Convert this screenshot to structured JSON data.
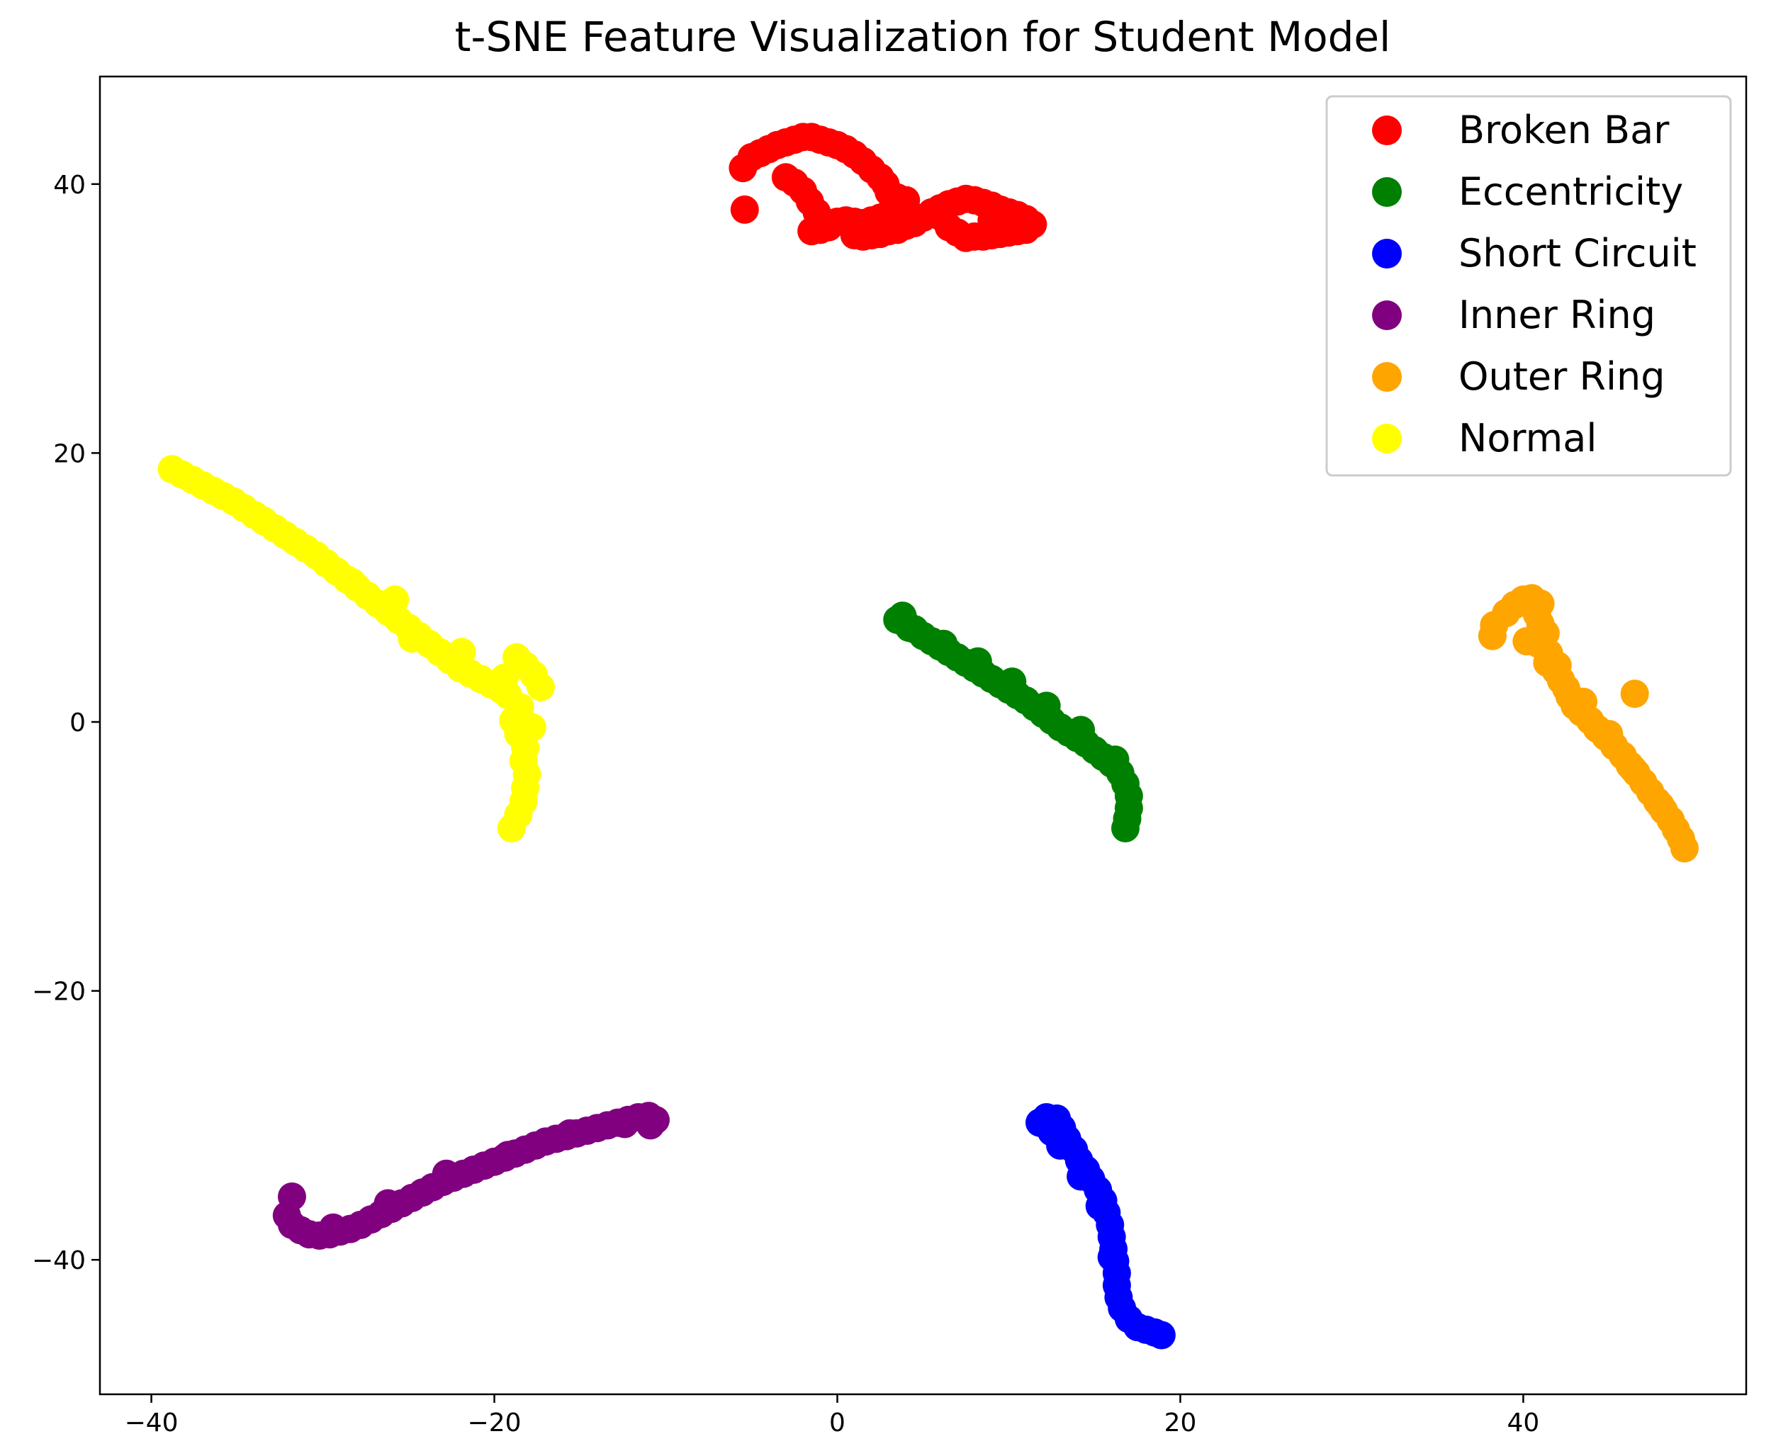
{
  "chart_data": {
    "type": "scatter",
    "title": "t-SNE Feature Visualization for Student Model",
    "xlabel": "",
    "ylabel": "",
    "xlim": [
      -43,
      53
    ],
    "ylim": [
      -50,
      48
    ],
    "x_ticks": [
      -40,
      -20,
      0,
      20,
      40
    ],
    "x_tick_labels": [
      "−40",
      "−20",
      "0",
      "20",
      "40"
    ],
    "y_ticks": [
      -40,
      -20,
      0,
      20,
      40
    ],
    "y_tick_labels": [
      "−40",
      "−20",
      "0",
      "20",
      "40"
    ],
    "grid": false,
    "legend_position": "top-right",
    "series": [
      {
        "name": "Broken Bar",
        "color": "#ff0000",
        "points": [
          [
            -5.5,
            41.2
          ],
          [
            -5,
            42
          ],
          [
            -4.5,
            42.3
          ],
          [
            -4,
            42.6
          ],
          [
            -3.5,
            42.9
          ],
          [
            -3,
            43.1
          ],
          [
            -2.5,
            43.3
          ],
          [
            -2,
            43.5
          ],
          [
            -1.5,
            43.5
          ],
          [
            -1,
            43.3
          ],
          [
            -0.5,
            43.1
          ],
          [
            0,
            42.9
          ],
          [
            0.5,
            42.6
          ],
          [
            1,
            42.2
          ],
          [
            1.5,
            41.7
          ],
          [
            2,
            41.1
          ],
          [
            2.5,
            40.5
          ],
          [
            2.8,
            40
          ],
          [
            3,
            39.4
          ],
          [
            3.5,
            39
          ],
          [
            4,
            38.8
          ],
          [
            3.5,
            38.2
          ],
          [
            3,
            37.8
          ],
          [
            2.5,
            37.5
          ],
          [
            2,
            37.3
          ],
          [
            1.5,
            37.1
          ],
          [
            1,
            37.2
          ],
          [
            0.5,
            37.3
          ],
          [
            0,
            37.2
          ],
          [
            -0.5,
            36.8
          ],
          [
            -1,
            36.6
          ],
          [
            -1.5,
            36.5
          ],
          [
            -5.4,
            38.1
          ],
          [
            -3,
            40.5
          ],
          [
            -2.5,
            40.1
          ],
          [
            -2,
            39.5
          ],
          [
            -1.6,
            38.7
          ],
          [
            -1.2,
            37.9
          ],
          [
            1,
            36.2
          ],
          [
            1.5,
            36.1
          ],
          [
            2,
            36.2
          ],
          [
            2.5,
            36.3
          ],
          [
            3,
            36.5
          ],
          [
            3.5,
            36.6
          ],
          [
            4,
            36.9
          ],
          [
            4.5,
            37.1
          ],
          [
            5,
            37.5
          ],
          [
            5.5,
            37.9
          ],
          [
            6,
            38.2
          ],
          [
            6.5,
            38.5
          ],
          [
            7,
            38.7
          ],
          [
            7.5,
            38.9
          ],
          [
            8,
            38.8
          ],
          [
            8.5,
            38.6
          ],
          [
            9,
            38.4
          ],
          [
            9.5,
            38.1
          ],
          [
            10,
            37.9
          ],
          [
            10.5,
            37.7
          ],
          [
            11,
            37.4
          ],
          [
            11.4,
            37
          ],
          [
            11,
            36.6
          ],
          [
            10.5,
            36.5
          ],
          [
            10,
            36.4
          ],
          [
            9.5,
            36.3
          ],
          [
            9,
            36.2
          ],
          [
            8.5,
            36.1
          ],
          [
            8,
            36.1
          ],
          [
            7.5,
            36
          ],
          [
            7,
            36.4
          ],
          [
            6,
            37.6
          ],
          [
            6.5,
            36.8
          ],
          [
            9,
            37.3
          ],
          [
            10,
            36.9
          ]
        ]
      },
      {
        "name": "Eccentricity",
        "color": "#008000",
        "points": [
          [
            3.5,
            7.6
          ],
          [
            3.8,
            7.9
          ],
          [
            4,
            7.3
          ],
          [
            4.5,
            6.9
          ],
          [
            5,
            6.4
          ],
          [
            5.5,
            6
          ],
          [
            6,
            5.6
          ],
          [
            6.5,
            5.2
          ],
          [
            7,
            4.8
          ],
          [
            7.5,
            4.4
          ],
          [
            8,
            4
          ],
          [
            8.5,
            3.6
          ],
          [
            9,
            3.2
          ],
          [
            9.5,
            2.8
          ],
          [
            10,
            2.4
          ],
          [
            10.5,
            2
          ],
          [
            11,
            1.6
          ],
          [
            11.5,
            1.1
          ],
          [
            12,
            0.6
          ],
          [
            12.5,
            0.1
          ],
          [
            13,
            -0.4
          ],
          [
            13.5,
            -0.8
          ],
          [
            14,
            -1.2
          ],
          [
            14.5,
            -1.6
          ],
          [
            15,
            -2.1
          ],
          [
            15.5,
            -2.6
          ],
          [
            16,
            -3.1
          ],
          [
            16.5,
            -3.8
          ],
          [
            16.8,
            -4.6
          ],
          [
            17,
            -5.5
          ],
          [
            17,
            -6.4
          ],
          [
            16.9,
            -7.2
          ],
          [
            16.8,
            -7.9
          ],
          [
            4.2,
            7
          ],
          [
            6.2,
            5.8
          ],
          [
            8.2,
            4.5
          ],
          [
            10.2,
            3
          ],
          [
            12.2,
            1.2
          ],
          [
            14.2,
            -0.6
          ],
          [
            16.2,
            -2.8
          ]
        ]
      },
      {
        "name": "Short Circuit",
        "color": "#0000ff",
        "points": [
          [
            11.8,
            -29.8
          ],
          [
            12.2,
            -29.4
          ],
          [
            12.8,
            -29.5
          ],
          [
            13.1,
            -30.2
          ],
          [
            13.4,
            -31
          ],
          [
            13.8,
            -31.8
          ],
          [
            14.1,
            -32.6
          ],
          [
            14.5,
            -33.3
          ],
          [
            14.8,
            -34
          ],
          [
            15.2,
            -34.8
          ],
          [
            15.5,
            -35.6
          ],
          [
            15.7,
            -36.5
          ],
          [
            15.9,
            -37.4
          ],
          [
            16,
            -38.3
          ],
          [
            16.1,
            -39.2
          ],
          [
            16.2,
            -40.1
          ],
          [
            16.3,
            -41
          ],
          [
            16.3,
            -41.9
          ],
          [
            16.4,
            -42.8
          ],
          [
            16.6,
            -43.6
          ],
          [
            17,
            -44.4
          ],
          [
            17.5,
            -45
          ],
          [
            18,
            -45.2
          ],
          [
            18.5,
            -45.4
          ],
          [
            18.9,
            -45.6
          ],
          [
            12.5,
            -30.5
          ],
          [
            13,
            -31.5
          ],
          [
            14.2,
            -33.8
          ],
          [
            15.3,
            -36
          ],
          [
            16,
            -39.8
          ]
        ]
      },
      {
        "name": "Inner Ring",
        "color": "#800080",
        "points": [
          [
            -31.8,
            -35.3
          ],
          [
            -32.1,
            -36.7
          ],
          [
            -31.8,
            -37.4
          ],
          [
            -31.3,
            -37.8
          ],
          [
            -30.8,
            -38.1
          ],
          [
            -30.2,
            -38.2
          ],
          [
            -29.6,
            -38.1
          ],
          [
            -29,
            -37.9
          ],
          [
            -28.4,
            -37.7
          ],
          [
            -27.8,
            -37.4
          ],
          [
            -27.2,
            -37
          ],
          [
            -26.6,
            -36.6
          ],
          [
            -26,
            -36.2
          ],
          [
            -25.4,
            -35.8
          ],
          [
            -24.8,
            -35.4
          ],
          [
            -24.2,
            -35
          ],
          [
            -23.6,
            -34.6
          ],
          [
            -23,
            -34.2
          ],
          [
            -22.4,
            -33.9
          ],
          [
            -21.8,
            -33.6
          ],
          [
            -21.2,
            -33.3
          ],
          [
            -20.6,
            -33
          ],
          [
            -20,
            -32.7
          ],
          [
            -19.4,
            -32.4
          ],
          [
            -18.8,
            -32.1
          ],
          [
            -18.2,
            -31.8
          ],
          [
            -17.6,
            -31.5
          ],
          [
            -17,
            -31.2
          ],
          [
            -16.4,
            -31
          ],
          [
            -15.8,
            -30.8
          ],
          [
            -15.2,
            -30.6
          ],
          [
            -14.6,
            -30.4
          ],
          [
            -14,
            -30.2
          ],
          [
            -13.4,
            -30
          ],
          [
            -12.8,
            -29.8
          ],
          [
            -12.2,
            -29.6
          ],
          [
            -11.6,
            -29.4
          ],
          [
            -11,
            -29.3
          ],
          [
            -10.6,
            -29.6
          ],
          [
            -10.9,
            -30
          ],
          [
            -29.4,
            -37.6
          ],
          [
            -26.2,
            -35.8
          ],
          [
            -22.8,
            -33.6
          ],
          [
            -19.2,
            -32.2
          ],
          [
            -15.6,
            -30.6
          ],
          [
            -12.4,
            -29.9
          ]
        ]
      },
      {
        "name": "Outer Ring",
        "color": "#ffa500",
        "points": [
          [
            38.2,
            6.4
          ],
          [
            38.3,
            7.2
          ],
          [
            39,
            8.1
          ],
          [
            39.5,
            8.7
          ],
          [
            40,
            9.1
          ],
          [
            40.5,
            9.2
          ],
          [
            41,
            8.8
          ],
          [
            40.8,
            8
          ],
          [
            41,
            7.3
          ],
          [
            41.3,
            6.6
          ],
          [
            40.9,
            5.8
          ],
          [
            41.5,
            5.1
          ],
          [
            41.4,
            4.4
          ],
          [
            41.9,
            3.8
          ],
          [
            42.2,
            3.1
          ],
          [
            42.5,
            2.5
          ],
          [
            42.7,
            1.9
          ],
          [
            43,
            1.2
          ],
          [
            43.4,
            0.7
          ],
          [
            43.9,
            0.1
          ],
          [
            44.3,
            -0.5
          ],
          [
            44.8,
            -1.1
          ],
          [
            45.3,
            -1.8
          ],
          [
            45.8,
            -2.5
          ],
          [
            46.2,
            -3.2
          ],
          [
            46.6,
            -3.8
          ],
          [
            47,
            -4.5
          ],
          [
            47.4,
            -5.2
          ],
          [
            47.8,
            -5.9
          ],
          [
            48.2,
            -6.6
          ],
          [
            48.6,
            -7.3
          ],
          [
            48.9,
            -8
          ],
          [
            49.2,
            -8.7
          ],
          [
            49.4,
            -9.4
          ],
          [
            46.5,
            2.1
          ],
          [
            40.2,
            6
          ],
          [
            42,
            4.2
          ],
          [
            43.5,
            1.5
          ],
          [
            45,
            -0.9
          ],
          [
            46.4,
            -3.5
          ],
          [
            48,
            -6.2
          ]
        ]
      },
      {
        "name": "Normal",
        "color": "#ffff00",
        "points": [
          [
            -38.8,
            18.8
          ],
          [
            -38.2,
            18.4
          ],
          [
            -37.6,
            18
          ],
          [
            -37,
            17.6
          ],
          [
            -36.4,
            17.2
          ],
          [
            -35.8,
            16.8
          ],
          [
            -35.2,
            16.4
          ],
          [
            -34.6,
            15.9
          ],
          [
            -34,
            15.4
          ],
          [
            -33.4,
            14.9
          ],
          [
            -32.8,
            14.4
          ],
          [
            -32.2,
            13.9
          ],
          [
            -31.6,
            13.4
          ],
          [
            -31,
            12.9
          ],
          [
            -30.4,
            12.4
          ],
          [
            -29.8,
            11.8
          ],
          [
            -29.2,
            11.2
          ],
          [
            -28.6,
            10.6
          ],
          [
            -28,
            10
          ],
          [
            -27.4,
            9.4
          ],
          [
            -26.8,
            8.8
          ],
          [
            -26.2,
            8.2
          ],
          [
            -25.6,
            7.6
          ],
          [
            -25,
            7
          ],
          [
            -24.4,
            6.4
          ],
          [
            -23.8,
            5.8
          ],
          [
            -23.2,
            5.2
          ],
          [
            -22.6,
            4.6
          ],
          [
            -22,
            4
          ],
          [
            -21.4,
            3.6
          ],
          [
            -20.8,
            3.2
          ],
          [
            -20.2,
            2.8
          ],
          [
            -19.6,
            2.4
          ],
          [
            -19.2,
            2
          ],
          [
            -18.7,
            4.8
          ],
          [
            -18.2,
            4.2
          ],
          [
            -17.7,
            3.5
          ],
          [
            -17.3,
            2.6
          ],
          [
            -18.5,
            1.1
          ],
          [
            -18.9,
            0.1
          ],
          [
            -18.6,
            -0.9
          ],
          [
            -18.2,
            -1.9
          ],
          [
            -18.3,
            -2.9
          ],
          [
            -18.1,
            -3.9
          ],
          [
            -18.2,
            -4.9
          ],
          [
            -18.3,
            -5.9
          ],
          [
            -18.6,
            -6.9
          ],
          [
            -19,
            -7.9
          ],
          [
            -33.5,
            15
          ],
          [
            -28.3,
            10.4
          ],
          [
            -25.8,
            9.1
          ],
          [
            -24.8,
            6.2
          ],
          [
            -21.9,
            5.2
          ],
          [
            -19.4,
            3.3
          ],
          [
            -17.8,
            -0.4
          ]
        ]
      }
    ]
  }
}
